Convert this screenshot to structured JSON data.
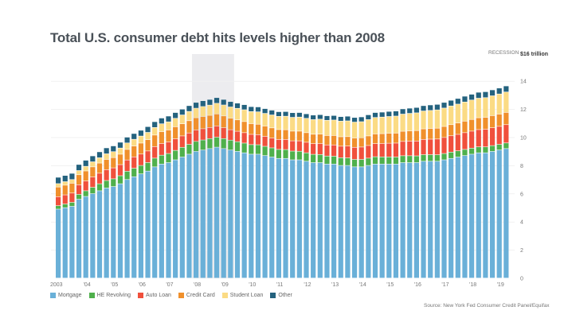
{
  "chart_data": {
    "type": "bar",
    "stacked": true,
    "title": "Total U.S. consumer debt hits levels higher than 2008",
    "unit_label": "$16 trillion",
    "recession_label": "RECESSION",
    "recession_span": [
      "2008Q1",
      "2009Q2"
    ],
    "ylim": [
      0,
      16
    ],
    "yticks": [
      "0",
      "2",
      "4",
      "6",
      "8",
      "10",
      "12",
      "14"
    ],
    "xtick_labels": [
      "2003",
      "'04",
      "'05",
      "'06",
      "'07",
      "'08",
      "'09",
      "'10",
      "'11",
      "'12",
      "'13",
      "'14",
      "'15",
      "'16",
      "'17",
      "'18",
      "'19"
    ],
    "source": "Source: New York Fed Consumer Credit Panel/Equifax",
    "legend_placement": "bottom-left",
    "grid": true,
    "series": [
      {
        "name": "Mortgage",
        "color": "#6ab0d8",
        "values": [
          4.9,
          5.0,
          5.1,
          5.6,
          5.8,
          6.0,
          6.2,
          6.4,
          6.5,
          6.7,
          7.0,
          7.2,
          7.4,
          7.6,
          7.9,
          8.1,
          8.2,
          8.4,
          8.6,
          8.8,
          9.0,
          9.1,
          9.2,
          9.3,
          9.2,
          9.1,
          9.0,
          8.9,
          8.8,
          8.8,
          8.7,
          8.6,
          8.5,
          8.5,
          8.4,
          8.4,
          8.3,
          8.2,
          8.2,
          8.1,
          8.1,
          8.0,
          8.0,
          7.9,
          7.9,
          8.0,
          8.1,
          8.1,
          8.1,
          8.1,
          8.2,
          8.2,
          8.2,
          8.3,
          8.3,
          8.3,
          8.4,
          8.5,
          8.6,
          8.7,
          8.8,
          8.9,
          8.9,
          9.0,
          9.1,
          9.2
        ]
      },
      {
        "name": "HE Revolving",
        "color": "#4fb04c",
        "values": [
          0.24,
          0.26,
          0.28,
          0.35,
          0.4,
          0.45,
          0.5,
          0.53,
          0.55,
          0.57,
          0.59,
          0.6,
          0.6,
          0.61,
          0.62,
          0.63,
          0.65,
          0.67,
          0.69,
          0.7,
          0.71,
          0.71,
          0.71,
          0.71,
          0.71,
          0.7,
          0.69,
          0.69,
          0.68,
          0.67,
          0.66,
          0.65,
          0.64,
          0.63,
          0.62,
          0.61,
          0.6,
          0.59,
          0.58,
          0.57,
          0.56,
          0.55,
          0.54,
          0.53,
          0.53,
          0.52,
          0.52,
          0.51,
          0.51,
          0.5,
          0.49,
          0.49,
          0.48,
          0.47,
          0.47,
          0.46,
          0.45,
          0.45,
          0.44,
          0.44,
          0.43,
          0.42,
          0.42,
          0.41,
          0.4,
          0.4
        ]
      },
      {
        "name": "Auto Loan",
        "color": "#f0503c",
        "values": [
          0.64,
          0.65,
          0.66,
          0.68,
          0.7,
          0.73,
          0.75,
          0.77,
          0.78,
          0.79,
          0.8,
          0.81,
          0.81,
          0.82,
          0.82,
          0.83,
          0.82,
          0.82,
          0.81,
          0.81,
          0.81,
          0.8,
          0.79,
          0.79,
          0.77,
          0.74,
          0.74,
          0.74,
          0.73,
          0.72,
          0.71,
          0.7,
          0.71,
          0.72,
          0.73,
          0.74,
          0.75,
          0.76,
          0.78,
          0.79,
          0.8,
          0.82,
          0.84,
          0.86,
          0.88,
          0.9,
          0.93,
          0.95,
          0.97,
          0.99,
          1.02,
          1.04,
          1.06,
          1.08,
          1.1,
          1.12,
          1.14,
          1.16,
          1.17,
          1.19,
          1.21,
          1.23,
          1.25,
          1.27,
          1.28,
          1.3
        ]
      },
      {
        "name": "Credit Card",
        "color": "#f0902c",
        "values": [
          0.69,
          0.69,
          0.7,
          0.71,
          0.71,
          0.72,
          0.72,
          0.73,
          0.73,
          0.74,
          0.75,
          0.77,
          0.78,
          0.8,
          0.82,
          0.84,
          0.85,
          0.86,
          0.86,
          0.87,
          0.87,
          0.87,
          0.86,
          0.86,
          0.84,
          0.82,
          0.81,
          0.79,
          0.76,
          0.74,
          0.73,
          0.72,
          0.7,
          0.69,
          0.69,
          0.69,
          0.68,
          0.67,
          0.67,
          0.67,
          0.67,
          0.67,
          0.67,
          0.66,
          0.66,
          0.68,
          0.69,
          0.7,
          0.71,
          0.71,
          0.72,
          0.73,
          0.74,
          0.75,
          0.76,
          0.77,
          0.78,
          0.79,
          0.81,
          0.82,
          0.83,
          0.84,
          0.85,
          0.86,
          0.87,
          0.87
        ]
      },
      {
        "name": "Student Loan",
        "color": "#fbdb84",
        "values": [
          0.24,
          0.25,
          0.26,
          0.3,
          0.33,
          0.36,
          0.38,
          0.4,
          0.42,
          0.44,
          0.46,
          0.48,
          0.5,
          0.52,
          0.54,
          0.56,
          0.58,
          0.6,
          0.63,
          0.66,
          0.68,
          0.71,
          0.73,
          0.76,
          0.78,
          0.8,
          0.82,
          0.84,
          0.86,
          0.88,
          0.9,
          0.92,
          0.94,
          0.96,
          0.98,
          1.0,
          1.02,
          1.04,
          1.06,
          1.08,
          1.1,
          1.11,
          1.12,
          1.13,
          1.14,
          1.16,
          1.17,
          1.18,
          1.19,
          1.21,
          1.22,
          1.24,
          1.26,
          1.27,
          1.28,
          1.3,
          1.31,
          1.33,
          1.34,
          1.36,
          1.38,
          1.39,
          1.4,
          1.41,
          1.43,
          1.45
        ]
      },
      {
        "name": "Other",
        "color": "#24627e",
        "values": [
          0.45,
          0.44,
          0.44,
          0.43,
          0.43,
          0.42,
          0.42,
          0.42,
          0.41,
          0.41,
          0.41,
          0.41,
          0.41,
          0.41,
          0.41,
          0.41,
          0.41,
          0.41,
          0.41,
          0.41,
          0.41,
          0.41,
          0.4,
          0.4,
          0.39,
          0.38,
          0.37,
          0.36,
          0.35,
          0.35,
          0.34,
          0.34,
          0.33,
          0.33,
          0.33,
          0.32,
          0.32,
          0.32,
          0.32,
          0.32,
          0.32,
          0.32,
          0.33,
          0.33,
          0.34,
          0.34,
          0.35,
          0.35,
          0.36,
          0.36,
          0.37,
          0.37,
          0.38,
          0.38,
          0.39,
          0.39,
          0.4,
          0.4,
          0.4,
          0.41,
          0.41,
          0.42,
          0.42,
          0.42,
          0.42,
          0.43
        ]
      }
    ]
  }
}
